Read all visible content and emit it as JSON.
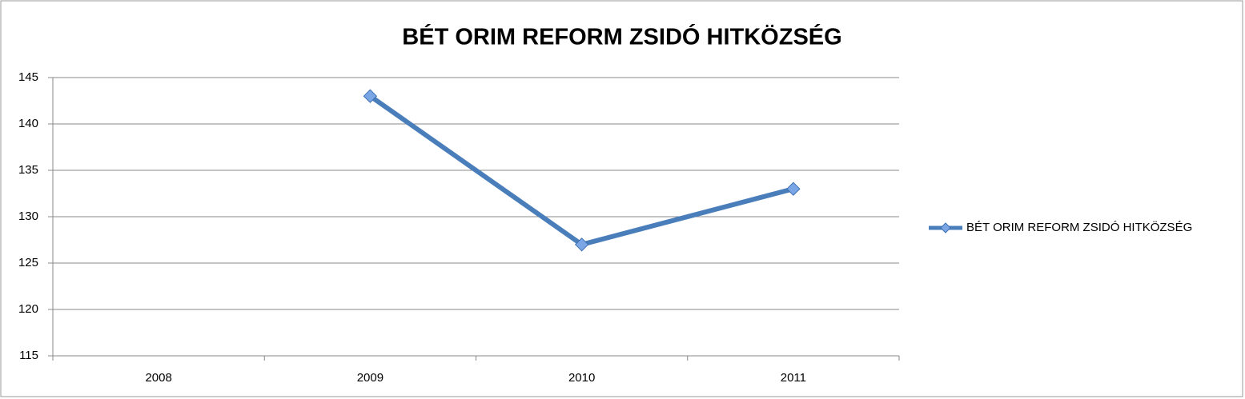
{
  "chart_data": {
    "type": "line",
    "title": "BÉT ORIM REFORM ZSIDÓ HITKÖZSÉG",
    "categories": [
      "2008",
      "2009",
      "2010",
      "2011"
    ],
    "series": [
      {
        "name": "BÉT ORIM REFORM ZSIDÓ HITKÖZSÉG",
        "color": "#4a7ebb",
        "values": [
          null,
          143,
          127,
          133
        ]
      }
    ],
    "ylim": [
      115,
      145
    ],
    "yticks": [
      115,
      120,
      125,
      130,
      135,
      140,
      145
    ],
    "grid": true,
    "legend": "right"
  }
}
